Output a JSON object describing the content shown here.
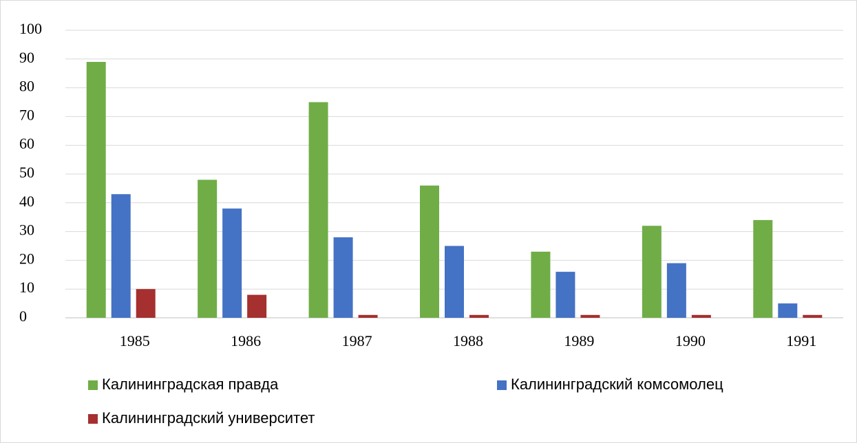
{
  "chart_data": {
    "type": "bar",
    "categories": [
      "1985",
      "1986",
      "1987",
      "1988",
      "1989",
      "1990",
      "1991"
    ],
    "series": [
      {
        "name": "Калининградская правда",
        "color": "#70ad47",
        "values": [
          89,
          48,
          75,
          46,
          23,
          32,
          34
        ]
      },
      {
        "name": "Калининградский комсомолец",
        "color": "#4472c4",
        "values": [
          43,
          38,
          28,
          25,
          16,
          19,
          5
        ]
      },
      {
        "name": "Калининградский университет",
        "color": "#a5302f",
        "values": [
          10,
          8,
          1,
          1,
          1,
          1,
          1
        ]
      }
    ],
    "ylim": [
      0,
      100
    ],
    "yticks": [
      0,
      10,
      20,
      30,
      40,
      50,
      60,
      70,
      80,
      90,
      100
    ],
    "grid": true,
    "legend": "bottom"
  }
}
